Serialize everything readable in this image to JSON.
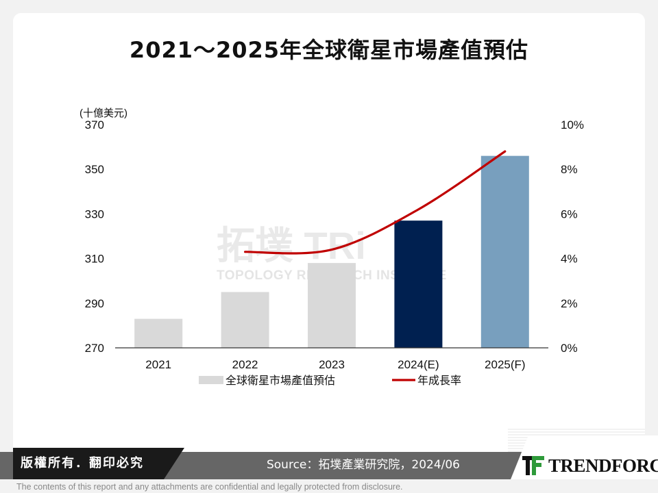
{
  "title": "2021～2025年全球衛星市場產值預估",
  "chart_data": {
    "type": "bar+line",
    "categories": [
      "2021",
      "2022",
      "2023",
      "2024(E)",
      "2025(F)"
    ],
    "series": [
      {
        "name": "全球衛星市場產值預估",
        "type": "bar",
        "axis": "left",
        "values": [
          283,
          295,
          308,
          327,
          356
        ],
        "colors": [
          "#d9d9d9",
          "#d9d9d9",
          "#d9d9d9",
          "#002050",
          "#789fbe"
        ]
      },
      {
        "name": "年成長率",
        "type": "line",
        "axis": "right",
        "color": "#c00000",
        "x": [
          "2022",
          "2023",
          "2024(E)",
          "2025(F)"
        ],
        "values": [
          4.3,
          4.4,
          6.2,
          8.8
        ]
      }
    ],
    "y_left": {
      "unit_label": "(十億美元)",
      "min": 270,
      "max": 370,
      "ticks": [
        270,
        290,
        310,
        330,
        350,
        370
      ]
    },
    "y_right": {
      "min": 0,
      "max": 10,
      "ticks": [
        0,
        2,
        4,
        6,
        8,
        10
      ],
      "tick_labels": [
        "0%",
        "2%",
        "4%",
        "6%",
        "8%",
        "10%"
      ]
    },
    "legend": {
      "position": "bottom",
      "items": [
        "全球衛星市場產值預估",
        "年成長率"
      ]
    },
    "grid": false
  },
  "watermark": {
    "text": "拓墣 TRi",
    "subtext": "TOPOLOGY RESEARCH INSTITUTE"
  },
  "footer": {
    "copyright": "版權所有．翻印必究",
    "source": "Source：拓墣產業研究院，2024/06",
    "logo": "TRENDFORCE",
    "disclaimer": "The contents of this report and any attachments are confidential and legally protected from disclosure."
  }
}
